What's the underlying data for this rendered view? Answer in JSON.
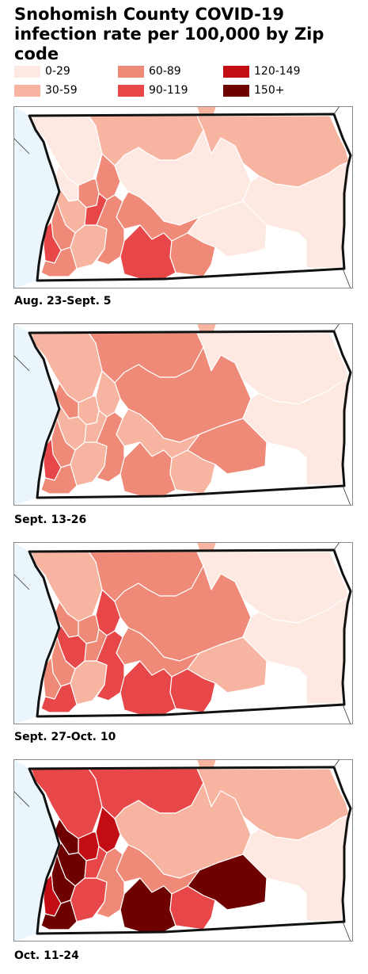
{
  "title": {
    "line1": "Snohomish County COVID-19",
    "line2": "infection rate per 100,000 by Zip code"
  },
  "legend": [
    {
      "label": "0-29",
      "color": "#fde8e2"
    },
    {
      "label": "30-59",
      "color": "#f7b4a0"
    },
    {
      "label": "60-89",
      "color": "#ef8a78"
    },
    {
      "label": "90-119",
      "color": "#e8474a"
    },
    {
      "label": "120-149",
      "color": "#c20d14"
    },
    {
      "label": "150+",
      "color": "#6e0000"
    }
  ],
  "colors": {
    "water": "#eaf6fc",
    "outside": "#ffffff",
    "county_border": "#111111",
    "zip_border": "#ffffff"
  },
  "panels": [
    {
      "caption": "Aug. 23-Sept. 5",
      "zones": {
        "nw": "0-29",
        "north": "30-59",
        "northeast": "30-59",
        "center": "0-29",
        "east": "0-29",
        "southeast": "0-29",
        "central_south": "60-89",
        "south_center": "90-119",
        "south_center2": "60-89",
        "arlington": "60-89",
        "marysville": "60-89",
        "tulalip": "0-29",
        "everett": "30-59",
        "sw_a": "60-89",
        "sw_b": "90-119",
        "sw_c": "30-59",
        "sw_d": "60-89",
        "monroe": "60-89",
        "snohomish": "90-119"
      }
    },
    {
      "caption": "Sept. 13-26",
      "zones": {
        "nw": "30-59",
        "north": "60-89",
        "northeast": "0-29",
        "center": "60-89",
        "east": "0-29",
        "southeast": "60-89",
        "central_south": "30-59",
        "south_center": "60-89",
        "south_center2": "30-59",
        "arlington": "30-59",
        "marysville": "30-59",
        "tulalip": "60-89",
        "everett": "30-59",
        "sw_a": "60-89",
        "sw_b": "90-119",
        "sw_c": "30-59",
        "sw_d": "60-89",
        "monroe": "60-89",
        "snohomish": "30-59"
      }
    },
    {
      "caption": "Sept. 27-Oct. 10",
      "zones": {
        "nw": "30-59",
        "north": "60-89",
        "northeast": "0-29",
        "center": "60-89",
        "east": "0-29",
        "southeast": "30-59",
        "central_south": "60-89",
        "south_center": "90-119",
        "south_center2": "90-119",
        "arlington": "90-119",
        "marysville": "60-89",
        "tulalip": "60-89",
        "everett": "90-119",
        "sw_a": "60-89",
        "sw_b": "60-89",
        "sw_c": "30-59",
        "sw_d": "90-119",
        "monroe": "90-119",
        "snohomish": "60-89"
      }
    },
    {
      "caption": "Oct. 11-24",
      "zones": {
        "nw": "90-119",
        "north": "90-119",
        "northeast": "30-59",
        "center": "30-59",
        "east": "0-29",
        "southeast": "150+",
        "central_south": "60-89",
        "south_center": "150+",
        "south_center2": "90-119",
        "arlington": "120-149",
        "marysville": "120-149",
        "tulalip": "150+",
        "everett": "150+",
        "sw_a": "150+",
        "sw_b": "120-149",
        "sw_c": "90-119",
        "sw_d": "150+",
        "monroe": "60-89",
        "snohomish": "90-119"
      }
    }
  ]
}
